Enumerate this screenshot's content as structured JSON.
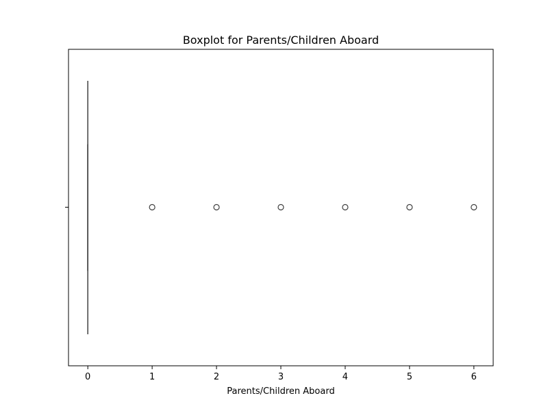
{
  "chart_data": {
    "type": "boxplot",
    "orientation": "horizontal",
    "title": "Boxplot for Parents/Children Aboard",
    "xlabel": "Parents/Children Aboard",
    "ylabel": "",
    "xlim": [
      -0.3,
      6.3
    ],
    "xticks": [
      0,
      1,
      2,
      3,
      4,
      5,
      6
    ],
    "xtick_labels": [
      "0",
      "1",
      "2",
      "3",
      "4",
      "5",
      "6"
    ],
    "grid": false,
    "box": {
      "min": 0,
      "q1": 0,
      "median": 0,
      "q3": 0,
      "max": 0
    },
    "outliers": [
      1,
      2,
      3,
      4,
      5,
      6
    ],
    "colors": {
      "box_edge": "#3f3f3f",
      "outlier_edge": "#3f3f3f",
      "axes": "#000000"
    }
  }
}
